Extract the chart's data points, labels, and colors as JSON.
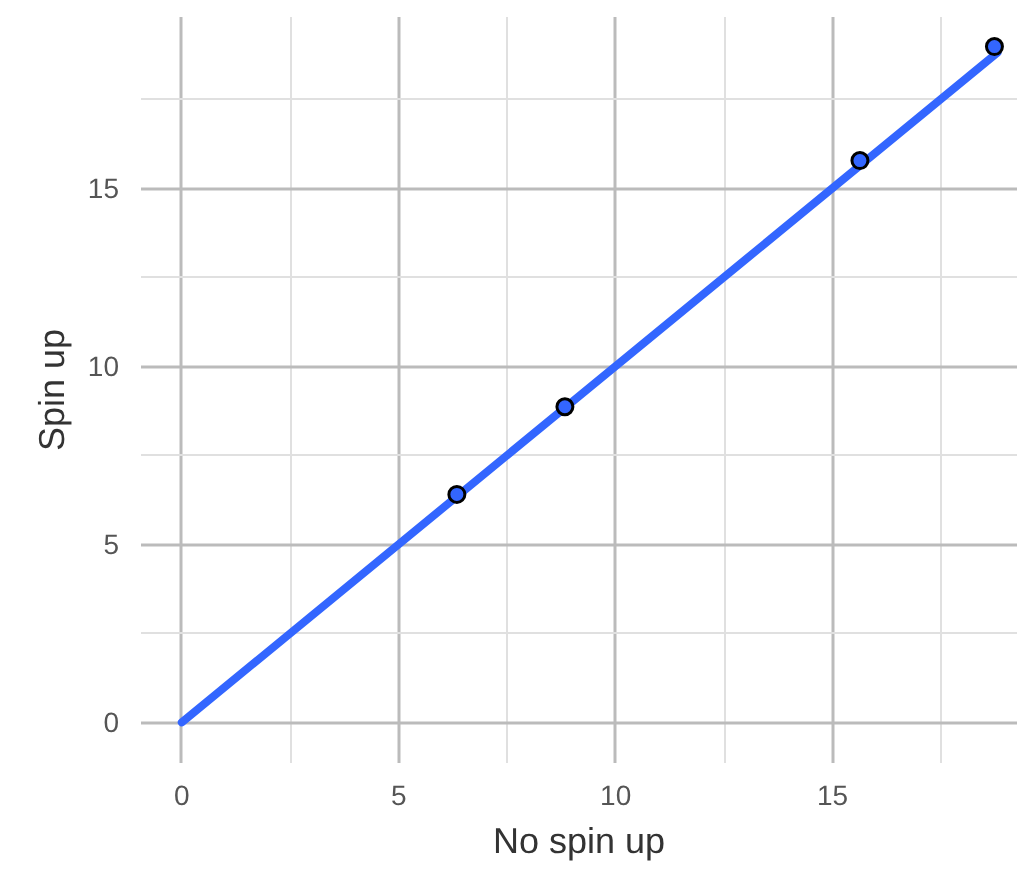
{
  "chart_data": {
    "type": "scatter",
    "xlabel": "No spin up",
    "ylabel": "Spin up",
    "xlim": [
      -0.94,
      19.25
    ],
    "ylim": [
      -1.14,
      19.8
    ],
    "xticks": [
      0,
      {
        "value": 2.5,
        "label": null
      },
      5,
      {
        "value": 7.5,
        "label": null
      },
      10,
      {
        "value": 12.5,
        "label": null
      },
      15,
      {
        "value": 17.5,
        "label": null
      }
    ],
    "yticks": [
      0,
      {
        "value": 2.5,
        "label": null
      },
      5,
      {
        "value": 7.5,
        "label": null
      },
      10,
      {
        "value": 12.5,
        "label": null
      },
      15,
      {
        "value": 17.5,
        "label": null
      }
    ],
    "grid": true,
    "series": [
      {
        "type": "line",
        "marker": "none",
        "color": "#3366ff",
        "x": [
          0,
          18.8
        ],
        "values": [
          0,
          18.8
        ]
      },
      {
        "marker": "circle",
        "color": "#3366ff",
        "x": [
          6.34,
          8.83,
          15.63,
          18.73
        ],
        "values": [
          6.4,
          8.86,
          15.77,
          18.97
        ]
      }
    ]
  }
}
